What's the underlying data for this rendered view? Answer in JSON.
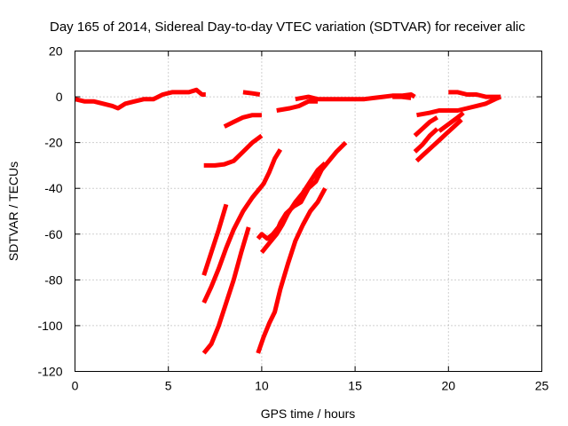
{
  "chart_data": {
    "type": "line",
    "title": "Day 165 of 2014, Sidereal Day-to-day VTEC variation (SDTVAR) for receiver alic",
    "xlabel": "GPS time / hours",
    "ylabel": "SDTVAR / TECUs",
    "xlim": [
      0,
      25
    ],
    "ylim": [
      -120,
      20
    ],
    "xticks": [
      0,
      5,
      10,
      15,
      20,
      25
    ],
    "yticks": [
      20,
      0,
      -20,
      -40,
      -60,
      -80,
      -100,
      -120
    ],
    "grid": true,
    "color": "#ff0000",
    "series": [
      {
        "points": [
          [
            0.0,
            -1
          ],
          [
            0.5,
            -2
          ],
          [
            1.0,
            -2
          ],
          [
            1.5,
            -3
          ],
          [
            2.0,
            -4
          ],
          [
            2.3,
            -5
          ],
          [
            2.7,
            -3
          ],
          [
            3.2,
            -2
          ],
          [
            3.7,
            -1
          ],
          [
            4.2,
            -1
          ],
          [
            4.7,
            1
          ],
          [
            5.2,
            2
          ],
          [
            5.7,
            2
          ],
          [
            6.1,
            2
          ],
          [
            6.5,
            3
          ],
          [
            6.8,
            1
          ],
          [
            7.0,
            1
          ]
        ]
      },
      {
        "points": [
          [
            9.0,
            2
          ],
          [
            9.5,
            1.5
          ],
          [
            9.9,
            1
          ]
        ]
      },
      {
        "points": [
          [
            8.0,
            -13
          ],
          [
            8.5,
            -11
          ],
          [
            9.0,
            -9
          ],
          [
            9.5,
            -8
          ],
          [
            10.0,
            -8
          ]
        ]
      },
      {
        "points": [
          [
            6.9,
            -30
          ],
          [
            7.5,
            -30
          ],
          [
            8.0,
            -29.5
          ],
          [
            8.5,
            -28
          ],
          [
            9.0,
            -24
          ],
          [
            9.5,
            -20
          ],
          [
            10.0,
            -17
          ]
        ]
      },
      {
        "points": [
          [
            6.9,
            -78
          ],
          [
            7.3,
            -68
          ],
          [
            7.7,
            -58
          ],
          [
            8.1,
            -47
          ]
        ]
      },
      {
        "points": [
          [
            6.9,
            -90
          ],
          [
            7.3,
            -83
          ],
          [
            7.7,
            -75
          ],
          [
            8.1,
            -66
          ],
          [
            8.5,
            -58
          ],
          [
            9.0,
            -50
          ],
          [
            9.5,
            -44
          ],
          [
            10.1,
            -38
          ],
          [
            10.4,
            -33
          ],
          [
            10.7,
            -27
          ],
          [
            11.0,
            -23
          ]
        ]
      },
      {
        "points": [
          [
            6.9,
            -112
          ],
          [
            7.3,
            -108
          ],
          [
            7.7,
            -100
          ],
          [
            8.1,
            -90
          ],
          [
            8.5,
            -80
          ],
          [
            8.9,
            -68
          ],
          [
            9.3,
            -57
          ]
        ]
      },
      {
        "points": [
          [
            9.8,
            -112
          ],
          [
            10.1,
            -105
          ],
          [
            10.4,
            -99
          ],
          [
            10.7,
            -94
          ],
          [
            11.0,
            -84
          ],
          [
            11.4,
            -73
          ],
          [
            11.8,
            -63
          ],
          [
            12.2,
            -56
          ],
          [
            12.6,
            -50
          ],
          [
            13.0,
            -46
          ],
          [
            13.4,
            -40
          ]
        ]
      },
      {
        "points": [
          [
            9.8,
            -62
          ],
          [
            10.0,
            -60
          ],
          [
            10.3,
            -62
          ],
          [
            10.6,
            -60
          ],
          [
            10.9,
            -57
          ],
          [
            11.0,
            -55
          ],
          [
            11.3,
            -51
          ],
          [
            11.7,
            -48
          ],
          [
            12.1,
            -46
          ],
          [
            12.5,
            -40
          ],
          [
            12.9,
            -37
          ],
          [
            13.2,
            -32
          ],
          [
            13.6,
            -28
          ],
          [
            14.0,
            -24
          ],
          [
            14.5,
            -20
          ]
        ]
      },
      {
        "points": [
          [
            10.0,
            -68
          ],
          [
            10.4,
            -64
          ],
          [
            10.8,
            -60
          ],
          [
            11.1,
            -56
          ],
          [
            11.4,
            -51
          ],
          [
            11.8,
            -46
          ],
          [
            12.2,
            -42
          ],
          [
            12.6,
            -37
          ],
          [
            13.0,
            -32
          ],
          [
            13.4,
            -29
          ]
        ]
      },
      {
        "points": [
          [
            10.8,
            -6
          ],
          [
            11.5,
            -5
          ],
          [
            12.0,
            -4
          ],
          [
            12.5,
            -2
          ],
          [
            13.0,
            -2
          ]
        ]
      },
      {
        "points": [
          [
            11.8,
            -1
          ],
          [
            12.5,
            0
          ],
          [
            13.0,
            -1
          ],
          [
            13.5,
            -1
          ],
          [
            14.0,
            -1
          ],
          [
            14.5,
            -1
          ],
          [
            15.0,
            -1
          ],
          [
            15.5,
            -1
          ],
          [
            16.0,
            -0.5
          ],
          [
            16.5,
            0
          ],
          [
            17.0,
            0.5
          ],
          [
            17.5,
            0.5
          ],
          [
            18.0,
            1
          ],
          [
            18.2,
            0
          ]
        ]
      },
      {
        "points": [
          [
            17.0,
            0
          ],
          [
            17.5,
            0
          ],
          [
            18.0,
            -0.5
          ]
        ]
      },
      {
        "points": [
          [
            18.3,
            -8
          ],
          [
            19.0,
            -7
          ],
          [
            19.5,
            -6
          ],
          [
            20.0,
            -6
          ],
          [
            20.5,
            -6
          ],
          [
            21.0,
            -5
          ],
          [
            21.5,
            -4
          ],
          [
            22.0,
            -3
          ],
          [
            22.5,
            -1
          ],
          [
            22.8,
            0
          ]
        ]
      },
      {
        "points": [
          [
            20.0,
            2
          ],
          [
            20.5,
            2
          ],
          [
            21.0,
            1
          ],
          [
            21.5,
            1
          ],
          [
            22.0,
            0
          ],
          [
            22.5,
            0
          ],
          [
            22.8,
            0
          ]
        ]
      },
      {
        "points": [
          [
            18.2,
            -17
          ],
          [
            18.6,
            -14
          ],
          [
            19.0,
            -11
          ],
          [
            19.4,
            -9
          ]
        ]
      },
      {
        "points": [
          [
            18.2,
            -24
          ],
          [
            18.6,
            -21
          ],
          [
            19.0,
            -17
          ],
          [
            19.4,
            -14
          ]
        ]
      },
      {
        "points": [
          [
            18.3,
            -28
          ],
          [
            18.7,
            -25
          ],
          [
            19.1,
            -22
          ],
          [
            19.5,
            -19
          ],
          [
            19.9,
            -16
          ],
          [
            20.3,
            -13
          ],
          [
            20.7,
            -10
          ]
        ]
      },
      {
        "points": [
          [
            19.5,
            -15
          ],
          [
            20.0,
            -12
          ],
          [
            20.5,
            -9
          ],
          [
            20.8,
            -7
          ]
        ]
      }
    ]
  }
}
